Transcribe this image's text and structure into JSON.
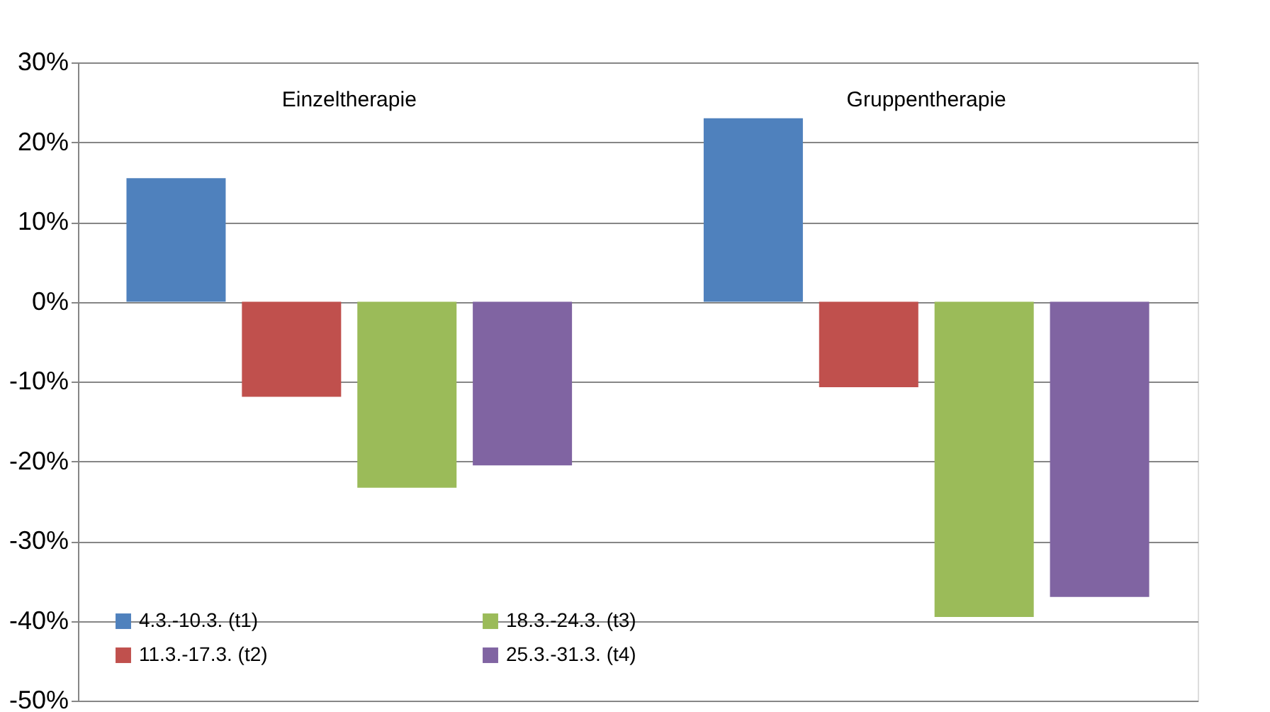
{
  "chart_data": {
    "type": "bar",
    "categories": [
      "Einzeltherapie",
      "Gruppentherapie"
    ],
    "series": [
      {
        "name": "4.3.-10.3. (t1)",
        "color": "#4f81bd",
        "values": [
          0.155,
          0.23
        ]
      },
      {
        "name": "11.3.-17.3. (t2)",
        "color": "#c0504d",
        "values": [
          -0.119,
          -0.107
        ]
      },
      {
        "name": "18.3.-24.3. (t3)",
        "color": "#9bbb59",
        "values": [
          -0.233,
          -0.395
        ]
      },
      {
        "name": "25.3.-31.3. (t4)",
        "color": "#8064a2",
        "values": [
          -0.205,
          -0.37
        ]
      }
    ],
    "ylim": [
      -0.5,
      0.3
    ],
    "yticks": [
      {
        "value": -0.5,
        "label": "-50%"
      },
      {
        "value": -0.4,
        "label": "-40%"
      },
      {
        "value": -0.3,
        "label": "-30%"
      },
      {
        "value": -0.2,
        "label": "-20%"
      },
      {
        "value": -0.1,
        "label": "-10%"
      },
      {
        "value": 0,
        "label": "0%"
      },
      {
        "value": 0.1,
        "label": "10%"
      },
      {
        "value": 0.2,
        "label": "20%"
      },
      {
        "value": 0.3,
        "label": "30%"
      }
    ],
    "grid": "y",
    "legend": "bottom left"
  }
}
